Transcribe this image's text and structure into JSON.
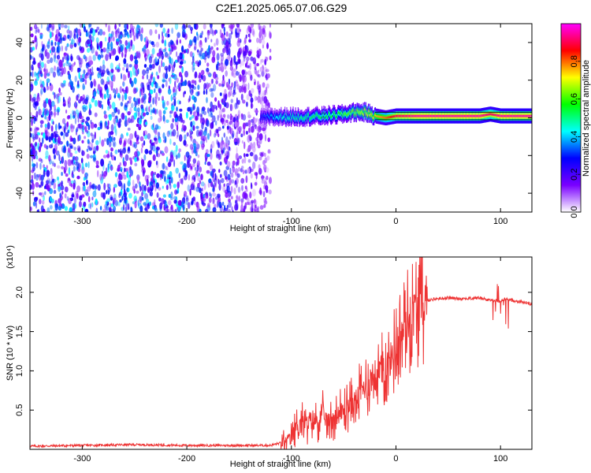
{
  "title": "C2E1.2025.065.07.06.G29",
  "chart_data": [
    {
      "type": "heatmap",
      "xlabel": "Height of straight line (km)",
      "ylabel": "Frequency (Hz)",
      "xlim": [
        -350,
        130
      ],
      "ylim": [
        -50,
        50
      ],
      "x_ticks": [
        "-300",
        "-200",
        "-100",
        "0",
        "100"
      ],
      "x_tick_values": [
        -300,
        -200,
        -100,
        0,
        100
      ],
      "y_ticks": [
        "-40",
        "-20",
        "0",
        "20",
        "40"
      ],
      "y_tick_values": [
        -40,
        -20,
        0,
        20,
        40
      ],
      "colorbar": {
        "label": "Normalized spectral amplitude",
        "range": [
          0,
          1
        ],
        "ticks": [
          "0.0",
          "0.2",
          "0.4",
          "0.6",
          "0.8"
        ],
        "tick_values": [
          0.0,
          0.2,
          0.4,
          0.6,
          0.8
        ],
        "colors": [
          "#ffffff",
          "#7a00ff",
          "#0000ff",
          "#00ffff",
          "#00ff00",
          "#ffff00",
          "#ff0000",
          "#ff00ff"
        ]
      },
      "ridge": {
        "x": [
          -130,
          -110,
          -90,
          -70,
          -50,
          -40,
          -30,
          -20,
          -10,
          0,
          20,
          40,
          60,
          80,
          90,
          100,
          130
        ],
        "freq": [
          0,
          0.5,
          0.5,
          1,
          2,
          3,
          3,
          1,
          0,
          1,
          1,
          1,
          1,
          1,
          2,
          1,
          1
        ],
        "amplitude": [
          0.3,
          0.45,
          0.5,
          0.55,
          0.6,
          0.65,
          0.7,
          0.75,
          0.8,
          0.9,
          0.95,
          0.95,
          0.95,
          0.95,
          0.9,
          0.95,
          0.95
        ]
      },
      "noise_region": {
        "x_range": [
          -350,
          -120
        ],
        "freq_range": [
          -50,
          50
        ]
      }
    },
    {
      "type": "line",
      "xlabel": "Height of straight line (km)",
      "ylabel": "SNR (10 * v/v)",
      "scale_label": "(x10⁴)",
      "xlim": [
        -350,
        130
      ],
      "ylim": [
        0,
        2.45
      ],
      "x_ticks": [
        "-300",
        "-200",
        "-100",
        "0",
        "100"
      ],
      "x_tick_values": [
        -300,
        -200,
        -100,
        0,
        100
      ],
      "y_ticks": [
        "0.5",
        "1.0",
        "1.5",
        "2.0"
      ],
      "y_tick_values": [
        0.5,
        1.0,
        1.5,
        2.0
      ],
      "color": "#ee3333",
      "series": [
        {
          "x": [
            -350,
            -300,
            -250,
            -200,
            -150,
            -120,
            -105,
            -100,
            -95,
            -90,
            -85,
            -80,
            -75,
            -70,
            -65,
            -60,
            -55,
            -50,
            -45,
            -40,
            -35,
            -30,
            -25,
            -20,
            -15,
            -10,
            -5,
            0,
            5,
            10,
            15,
            20,
            25,
            30,
            40,
            50,
            60,
            70,
            80,
            90,
            95,
            100,
            105,
            110,
            120,
            130
          ],
          "y": [
            0.04,
            0.05,
            0.06,
            0.05,
            0.05,
            0.05,
            0.1,
            0.15,
            0.3,
            0.35,
            0.3,
            0.4,
            0.35,
            0.45,
            0.35,
            0.4,
            0.45,
            0.5,
            0.55,
            0.6,
            0.7,
            0.8,
            0.85,
            0.95,
            1.0,
            1.05,
            1.15,
            1.3,
            1.45,
            1.6,
            1.7,
            1.8,
            1.85,
            1.9,
            1.92,
            1.93,
            1.92,
            1.92,
            1.93,
            1.9,
            1.9,
            1.88,
            1.92,
            1.9,
            1.88,
            1.85
          ]
        }
      ]
    }
  ]
}
